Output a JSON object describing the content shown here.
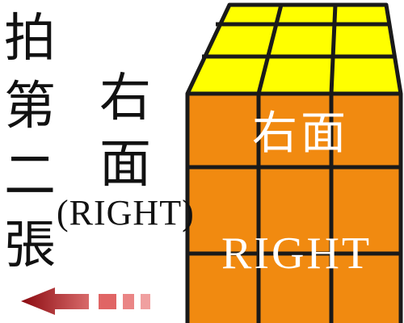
{
  "left_column": {
    "chars": [
      "拍",
      "第",
      "二",
      "張"
    ]
  },
  "center_label": {
    "chars": [
      "右",
      "面"
    ],
    "word": "(RIGHT)"
  },
  "cube": {
    "top_color": "#ffff00",
    "front_color": "#f18a10",
    "line_color": "#1a1a1a",
    "face_label_cjk": "右面",
    "face_label_en": "RIGHT"
  },
  "arrow": {
    "direction": "left",
    "color": "#8b0a10",
    "dash_color": "#e88080"
  }
}
